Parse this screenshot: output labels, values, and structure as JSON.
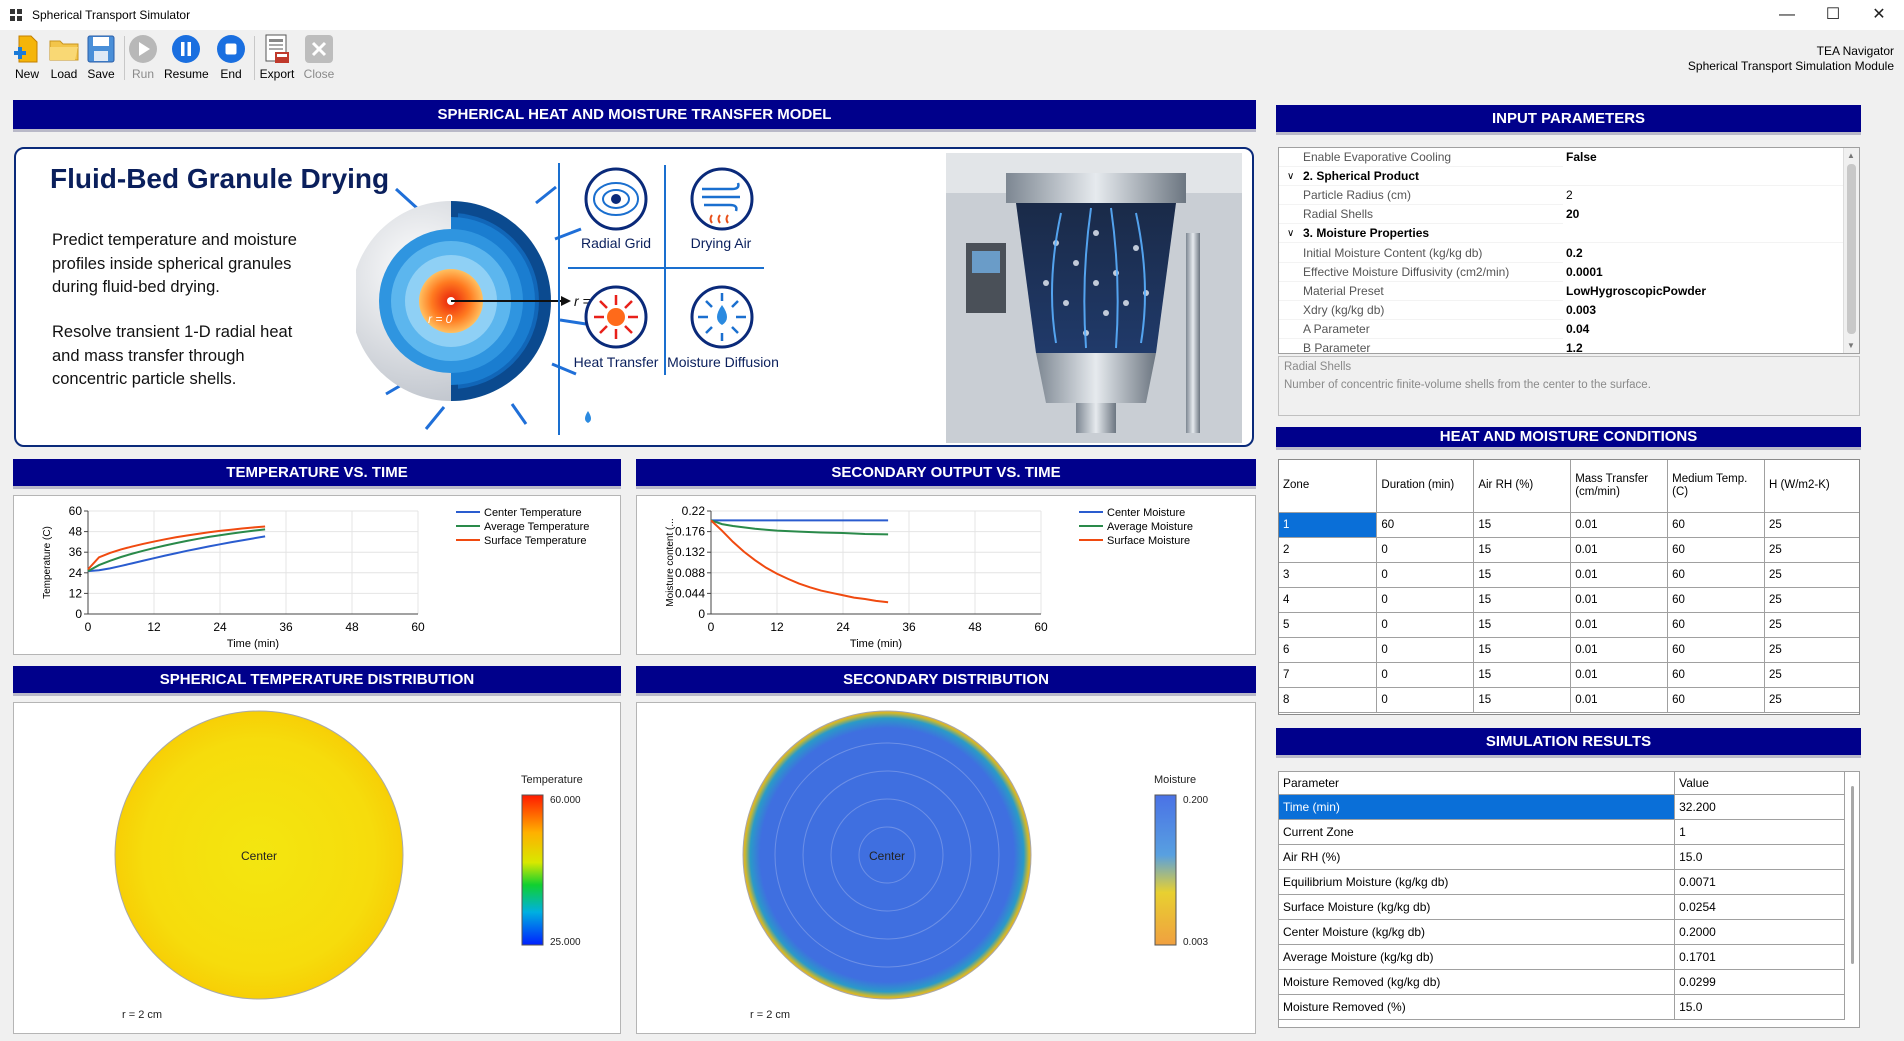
{
  "window": {
    "title": "Spherical Transport Simulator"
  },
  "toolbar": {
    "buttons": [
      {
        "label": "New",
        "enabled": true,
        "icon": "new-file-icon"
      },
      {
        "label": "Load",
        "enabled": true,
        "icon": "folder-icon"
      },
      {
        "label": "Save",
        "enabled": true,
        "icon": "floppy-icon"
      },
      {
        "label": "Run",
        "enabled": false,
        "icon": "play-icon"
      },
      {
        "label": "Resume",
        "enabled": true,
        "icon": "pause-icon"
      },
      {
        "label": "End",
        "enabled": true,
        "icon": "stop-icon"
      },
      {
        "label": "Export",
        "enabled": true,
        "icon": "export-icon"
      },
      {
        "label": "Close",
        "enabled": false,
        "icon": "close-x-icon"
      }
    ]
  },
  "navigator": {
    "line1": "TEA Navigator",
    "line2": "Spherical Transport Simulation Module"
  },
  "headers": {
    "model": "SPHERICAL HEAT AND MOISTURE TRANSFER MODEL",
    "input": "INPUT PARAMETERS",
    "temp_time": "TEMPERATURE VS. TIME",
    "sec_time": "SECONDARY OUTPUT VS. TIME",
    "temp_dist": "SPHERICAL TEMPERATURE DISTRIBUTION",
    "sec_dist": "SECONDARY DISTRIBUTION",
    "conditions": "HEAT AND MOISTURE CONDITIONS",
    "results": "SIMULATION RESULTS"
  },
  "hero": {
    "title": "Fluid-Bed Granule Drying",
    "para1": [
      "Predict temperature and moisture",
      "profiles inside spherical granules",
      "during fluid-bed drying."
    ],
    "para2": [
      "Resolve transient 1-D radial heat",
      "and mass transfer through",
      "concentric particle shells."
    ],
    "label_center": "r = 0",
    "label_surface": "r = R",
    "tiles": [
      "Radial Grid",
      "Drying Air",
      "Heat Transfer",
      "Moisture Diffusion"
    ]
  },
  "property_grid": {
    "rows": [
      {
        "type": "prop",
        "name": "Enable Evaporative Cooling",
        "value": "False"
      },
      {
        "type": "cat",
        "name": "2. Spherical Product"
      },
      {
        "type": "prop",
        "name": "Particle Radius (cm)",
        "value": "2"
      },
      {
        "type": "prop",
        "name": "Radial Shells",
        "value": "20",
        "bold": true
      },
      {
        "type": "cat",
        "name": "3. Moisture Properties"
      },
      {
        "type": "prop",
        "name": "Initial Moisture Content (kg/kg db)",
        "value": "0.2",
        "bold": true
      },
      {
        "type": "prop",
        "name": "Effective Moisture Diffusivity (cm2/min)",
        "value": "0.0001",
        "bold": true
      },
      {
        "type": "prop",
        "name": "Material Preset",
        "value": "LowHygroscopicPowder",
        "bold": true
      },
      {
        "type": "prop",
        "name": "Xdry (kg/kg db)",
        "value": "0.003",
        "bold": true
      },
      {
        "type": "prop",
        "name": "A Parameter",
        "value": "0.04",
        "bold": true
      },
      {
        "type": "prop",
        "name": "B Parameter",
        "value": "1.2",
        "bold": true
      }
    ],
    "help_title": "Radial Shells",
    "help_text": "Number of concentric finite-volume shells from the center to the surface."
  },
  "conditions": {
    "columns": [
      "Zone",
      "Duration (min)",
      "Air RH (%)",
      "Mass Transfer (cm/min)",
      "Medium Temp. (C)",
      "H (W/m2-K)"
    ],
    "rows": [
      [
        "1",
        "60",
        "15",
        "0.01",
        "60",
        "25"
      ],
      [
        "2",
        "0",
        "15",
        "0.01",
        "60",
        "25"
      ],
      [
        "3",
        "0",
        "15",
        "0.01",
        "60",
        "25"
      ],
      [
        "4",
        "0",
        "15",
        "0.01",
        "60",
        "25"
      ],
      [
        "5",
        "0",
        "15",
        "0.01",
        "60",
        "25"
      ],
      [
        "6",
        "0",
        "15",
        "0.01",
        "60",
        "25"
      ],
      [
        "7",
        "0",
        "15",
        "0.01",
        "60",
        "25"
      ],
      [
        "8",
        "0",
        "15",
        "0.01",
        "60",
        "25"
      ]
    ]
  },
  "results": {
    "columns": [
      "Parameter",
      "Value"
    ],
    "rows": [
      [
        "Time (min)",
        "32.200"
      ],
      [
        "Current Zone",
        "1"
      ],
      [
        "Air RH (%)",
        "15.0"
      ],
      [
        "Equilibrium Moisture (kg/kg db)",
        "0.0071"
      ],
      [
        "Surface Moisture (kg/kg db)",
        "0.0254"
      ],
      [
        "Center Moisture (kg/kg db)",
        "0.2000"
      ],
      [
        "Average Moisture (kg/kg db)",
        "0.1701"
      ],
      [
        "Moisture Removed (kg/kg db)",
        "0.0299"
      ],
      [
        "Moisture Removed (%)",
        "15.0"
      ]
    ]
  },
  "temp_dist": {
    "center_label": "Center",
    "radius_label": "r = 2 cm",
    "legend_title": "Temperature",
    "legend_max": "60.000",
    "legend_min": "25.000"
  },
  "sec_dist": {
    "center_label": "Center",
    "radius_label": "r = 2 cm",
    "legend_title": "Moisture",
    "legend_max": "0.200",
    "legend_min": "0.003"
  },
  "chart_data": [
    {
      "type": "line",
      "title": "",
      "xlabel": "Time (min)",
      "ylabel": "Temperature (C)",
      "xlim": [
        0,
        60
      ],
      "ylim": [
        0,
        60
      ],
      "xticks": [
        "0",
        "12",
        "24",
        "36",
        "48",
        "60"
      ],
      "yticks": [
        "0",
        "12",
        "24",
        "36",
        "48",
        "60"
      ],
      "legend_position": "top-right",
      "series": [
        {
          "name": "Center Temperature",
          "color": "#2a5ccf",
          "x": [
            0,
            2,
            4,
            6,
            8,
            10,
            12,
            14,
            16,
            18,
            20,
            22,
            24,
            26,
            28,
            30,
            32.2
          ],
          "y": [
            25,
            25.5,
            26.6,
            28,
            29.5,
            31,
            32.5,
            34,
            35.4,
            36.8,
            38.1,
            39.4,
            40.6,
            41.8,
            42.9,
            44,
            45.2
          ]
        },
        {
          "name": "Average Temperature",
          "color": "#2a8a4a",
          "x": [
            0,
            2,
            4,
            6,
            8,
            10,
            12,
            14,
            16,
            18,
            20,
            22,
            24,
            26,
            28,
            30,
            32.2
          ],
          "y": [
            25,
            28.5,
            31,
            33.2,
            35.1,
            36.8,
            38.4,
            39.9,
            41.3,
            42.6,
            43.8,
            44.9,
            45.9,
            46.8,
            47.7,
            48.5,
            49.3
          ]
        },
        {
          "name": "Surface Temperature",
          "color": "#f04a10",
          "x": [
            0,
            2,
            4,
            6,
            8,
            10,
            12,
            14,
            16,
            18,
            20,
            22,
            24,
            26,
            28,
            30,
            32.2
          ],
          "y": [
            26,
            33,
            35.6,
            37.6,
            39.3,
            40.8,
            42.2,
            43.5,
            44.7,
            45.7,
            46.7,
            47.6,
            48.4,
            49.1,
            49.8,
            50.4,
            51
          ]
        }
      ]
    },
    {
      "type": "line",
      "title": "",
      "xlabel": "Time (min)",
      "ylabel": "Moisture content (...",
      "xlim": [
        0,
        60
      ],
      "ylim": [
        0,
        0.22
      ],
      "xticks": [
        "0",
        "12",
        "24",
        "36",
        "48",
        "60"
      ],
      "yticks": [
        "0",
        "0.044",
        "0.088",
        "0.132",
        "0.176",
        "0.22"
      ],
      "legend_position": "top-right",
      "series": [
        {
          "name": "Center Moisture",
          "color": "#2a5ccf",
          "x": [
            0,
            32.2
          ],
          "y": [
            0.2,
            0.2
          ]
        },
        {
          "name": "Average Moisture",
          "color": "#2a8a4a",
          "x": [
            0,
            2,
            4,
            6,
            8,
            10,
            12,
            16,
            20,
            24,
            28,
            32.2
          ],
          "y": [
            0.2,
            0.192,
            0.188,
            0.185,
            0.182,
            0.18,
            0.178,
            0.176,
            0.174,
            0.173,
            0.171,
            0.17
          ]
        },
        {
          "name": "Surface Moisture",
          "color": "#f04a10",
          "x": [
            0,
            2,
            4,
            6,
            8,
            10,
            12,
            14,
            16,
            18,
            20,
            22,
            24,
            26,
            28,
            30,
            32.2
          ],
          "y": [
            0.2,
            0.178,
            0.154,
            0.133,
            0.115,
            0.099,
            0.086,
            0.075,
            0.065,
            0.057,
            0.05,
            0.045,
            0.04,
            0.035,
            0.032,
            0.028,
            0.025
          ]
        }
      ]
    }
  ]
}
